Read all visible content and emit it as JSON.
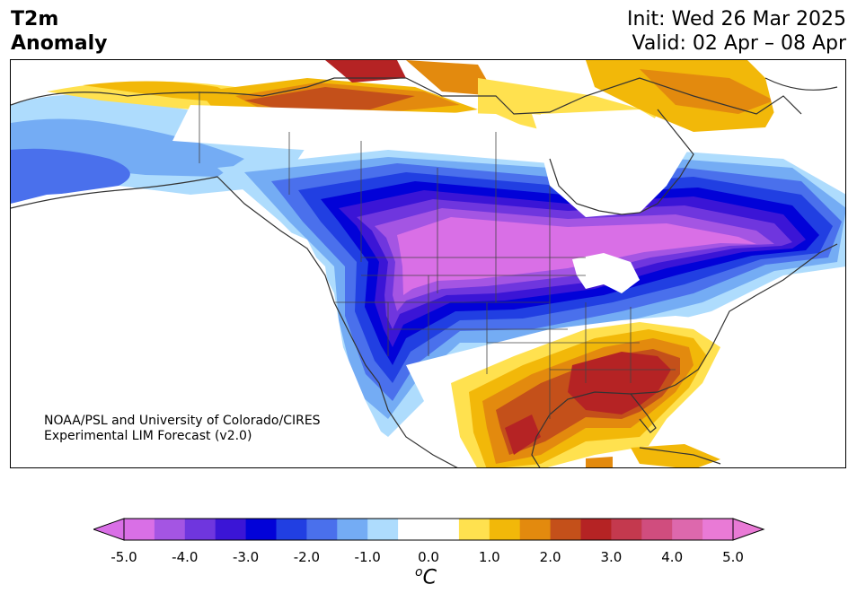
{
  "title_left": [
    "T2m",
    "Anomaly"
  ],
  "title_right": {
    "init": "Init: Wed 26 Mar 2025",
    "valid": "Valid: 02 Apr – 08 Apr"
  },
  "credit": [
    "NOAA/PSL and University of Colorado/CIRES",
    "Experimental LIM Forecast (v2.0)"
  ],
  "colorbar": {
    "tick_labels": [
      "-5.0",
      "-4.0",
      "-3.0",
      "-2.0",
      "-1.0",
      "0.0",
      "1.0",
      "2.0",
      "3.0",
      "4.0",
      "5.0"
    ],
    "unit_super": "o",
    "unit_main": "C",
    "levels": [
      -5.0,
      -4.5,
      -4.0,
      -3.5,
      -3.0,
      -2.5,
      -2.0,
      -1.5,
      -1.0,
      -0.5,
      0.5,
      1.0,
      1.5,
      2.0,
      2.5,
      3.0,
      3.5,
      4.0,
      4.5,
      5.0
    ],
    "colors": [
      "#d96fe6",
      "#a455e3",
      "#6f36de",
      "#3b15d6",
      "#0202d8",
      "#213fe2",
      "#4a70ec",
      "#74acf4",
      "#aedcfd",
      "#ffffff",
      "#ffe14f",
      "#f2b809",
      "#e38a0e",
      "#c4501a",
      "#b52324",
      "#c4394e",
      "#d04d7e",
      "#dd68ad",
      "#e97ad6"
    ],
    "extend_min_color": "#d96fe6",
    "extend_max_color": "#e97ad6"
  }
}
